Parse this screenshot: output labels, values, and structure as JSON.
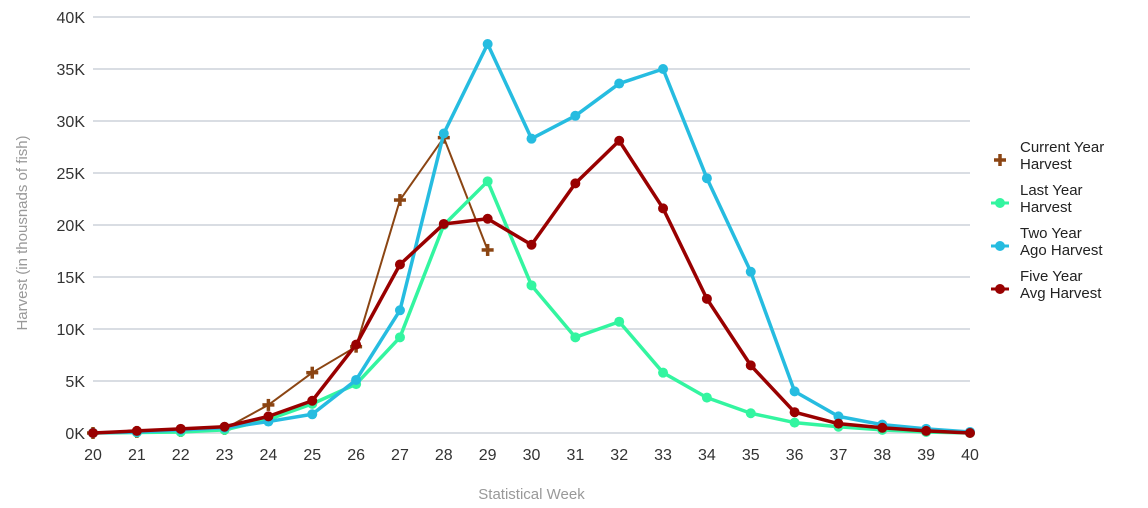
{
  "chart_data": {
    "type": "line",
    "title": "",
    "xlabel": "Statistical Week",
    "ylabel": "Harvest (in thousnads of fish)",
    "x": [
      20,
      21,
      22,
      23,
      24,
      25,
      26,
      27,
      28,
      29,
      30,
      31,
      32,
      33,
      34,
      35,
      36,
      37,
      38,
      39,
      40
    ],
    "x_tick_labels": [
      "20",
      "21",
      "22",
      "23",
      "24",
      "25",
      "26",
      "27",
      "28",
      "29",
      "30",
      "31",
      "32",
      "33",
      "34",
      "35",
      "36",
      "37",
      "38",
      "39",
      "40"
    ],
    "ylim": [
      0,
      40000
    ],
    "y_ticks": [
      0,
      5000,
      10000,
      15000,
      20000,
      25000,
      30000,
      35000,
      40000
    ],
    "y_tick_labels": [
      "0K",
      "5K",
      "10K",
      "15K",
      "20K",
      "25K",
      "30K",
      "35K",
      "40K"
    ],
    "grid": true,
    "legend_position": "right",
    "series": [
      {
        "name": "Current Year Harvest",
        "legend_lines": [
          "Current Year",
          "Harvest"
        ],
        "color": "#8B4513",
        "marker": "plus",
        "x": [
          20,
          21,
          22,
          23,
          24,
          25,
          26,
          27,
          28,
          29
        ],
        "values": [
          0,
          100,
          200,
          400,
          2700,
          5800,
          8300,
          22400,
          28400,
          17600
        ]
      },
      {
        "name": "Last Year Harvest",
        "legend_lines": [
          "Last Year",
          "Harvest"
        ],
        "color": "#33F5A0",
        "marker": "circle",
        "x": [
          20,
          21,
          22,
          23,
          24,
          25,
          26,
          27,
          28,
          29,
          30,
          31,
          32,
          33,
          34,
          35,
          36,
          37,
          38,
          39,
          40
        ],
        "values": [
          0,
          50,
          100,
          300,
          1300,
          2800,
          4700,
          9200,
          20000,
          24200,
          14200,
          9200,
          10700,
          5800,
          3400,
          1900,
          1000,
          600,
          300,
          100,
          0
        ]
      },
      {
        "name": "Two Year Ago Harvest",
        "legend_lines": [
          "Two Year",
          "Ago Harvest"
        ],
        "color": "#26BCE0",
        "marker": "circle",
        "x": [
          20,
          21,
          22,
          23,
          24,
          25,
          26,
          27,
          28,
          29,
          30,
          31,
          32,
          33,
          34,
          35,
          36,
          37,
          38,
          39,
          40
        ],
        "values": [
          0,
          100,
          300,
          500,
          1100,
          1800,
          5100,
          11800,
          28800,
          37400,
          28300,
          30500,
          33600,
          35000,
          24500,
          15500,
          4000,
          1600,
          800,
          400,
          100
        ]
      },
      {
        "name": "Five Year Avg Harvest",
        "legend_lines": [
          "Five Year",
          "Avg Harvest"
        ],
        "color": "#990000",
        "marker": "circle",
        "x": [
          20,
          21,
          22,
          23,
          24,
          25,
          26,
          27,
          28,
          29,
          30,
          31,
          32,
          33,
          34,
          35,
          36,
          37,
          38,
          39,
          40
        ],
        "values": [
          0,
          200,
          400,
          600,
          1600,
          3100,
          8500,
          16200,
          20100,
          20600,
          18100,
          24000,
          28100,
          21600,
          12900,
          6500,
          2000,
          900,
          500,
          200,
          0
        ]
      }
    ]
  }
}
